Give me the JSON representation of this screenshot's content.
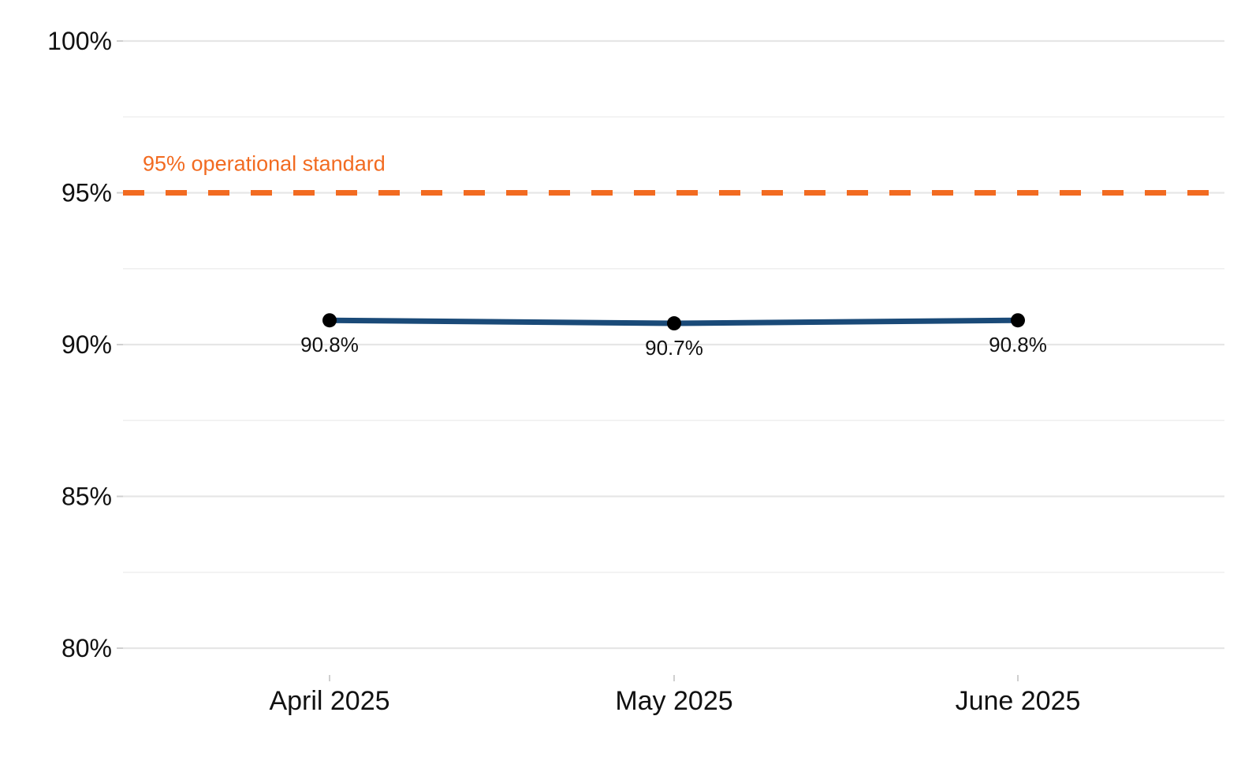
{
  "chart_data": {
    "type": "line",
    "title": "",
    "xlabel": "",
    "ylabel": "",
    "categories": [
      "April 2025",
      "May 2025",
      "June 2025"
    ],
    "series": [
      {
        "values": [
          90.8,
          90.7,
          90.8
        ],
        "labels": [
          "90.8%",
          "90.7%",
          "90.8%"
        ],
        "color": "#1a4a78",
        "marker_color": "#000000"
      }
    ],
    "ylim": [
      79.25,
      100.5
    ],
    "y_ticks": [
      80,
      85,
      90,
      95,
      100
    ],
    "y_tick_labels": [
      "80%",
      "85%",
      "90%",
      "95%",
      "100%"
    ],
    "y_minor_ticks": [
      82.5,
      87.5,
      92.5,
      97.5
    ],
    "reference_line": {
      "value": 95,
      "label": "95% operational standard",
      "color": "#f26b21",
      "style": "dashed"
    },
    "grid": true,
    "legend": "none"
  }
}
